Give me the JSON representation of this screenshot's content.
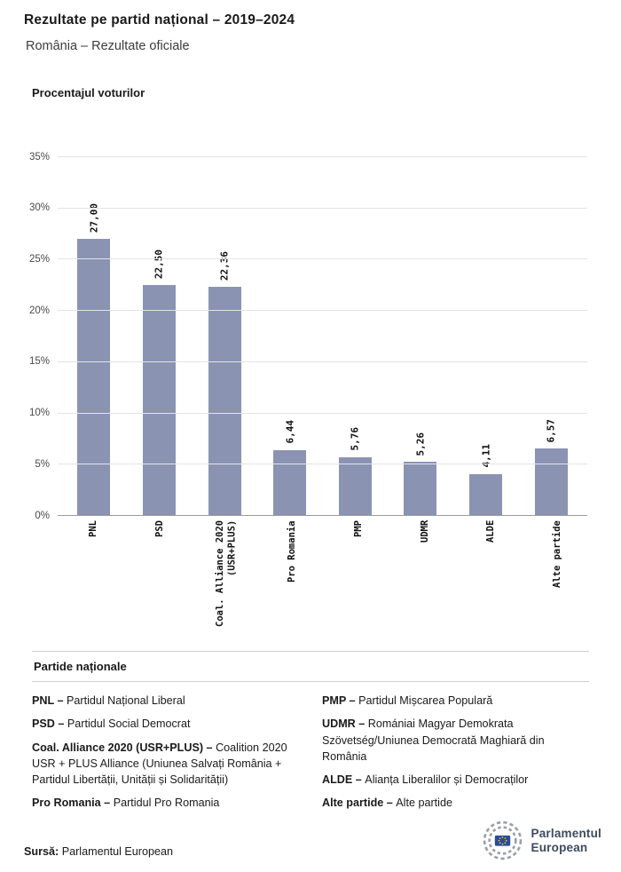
{
  "header": {
    "title": "Rezultate pe partid național – 2019–2024",
    "subtitle": "România – Rezultate oficiale"
  },
  "chart_data": {
    "type": "bar",
    "title": "Procentajul voturilor",
    "categories": [
      "PNL",
      "PSD",
      "Coal. Alliance 2020\n(USR+PLUS)",
      "Pro Romania",
      "PMP",
      "UDMR",
      "ALDE",
      "Alte partide"
    ],
    "values": [
      27.0,
      22.5,
      22.36,
      6.44,
      5.76,
      5.26,
      4.11,
      6.57
    ],
    "value_labels": [
      "27,00",
      "22,50",
      "22,36",
      "6,44",
      "5,76",
      "5,26",
      "4,11",
      "6,57"
    ],
    "xlabel": "",
    "ylabel": "Procentajul voturilor",
    "ylim": [
      0,
      35
    ],
    "yticks": [
      0,
      5,
      10,
      15,
      20,
      25,
      30,
      35
    ],
    "ytick_labels": [
      "0%",
      "5%",
      "10%",
      "15%",
      "20%",
      "25%",
      "30%",
      "35%"
    ],
    "grid": true,
    "legend_position": "none",
    "bar_color": "#8b93b2"
  },
  "legend": {
    "heading": "Partide naționale",
    "columns": [
      [
        {
          "term": "PNL –",
          "desc": "Partidul Național Liberal"
        },
        {
          "term": "PSD –",
          "desc": "Partidul Social Democrat"
        },
        {
          "term": "Coal. Alliance 2020 (USR+PLUS) –",
          "desc": "Coalition 2020 USR + PLUS Alliance (Uniunea Salvați România + Partidul Libertății, Unității și Solidarității)"
        },
        {
          "term": "Pro Romania –",
          "desc": "Partidul Pro Romania"
        }
      ],
      [
        {
          "term": "PMP –",
          "desc": "Partidul Mișcarea Populară"
        },
        {
          "term": "UDMR –",
          "desc": "Romániai Magyar Demokrata Szövetség/Uniunea Democrată Maghiară din România"
        },
        {
          "term": "ALDE –",
          "desc": "Alianța Liberalilor și Democraților"
        },
        {
          "term": "Alte partide –",
          "desc": "Alte partide"
        }
      ]
    ]
  },
  "footer": {
    "source_label": "Sursă:",
    "source_text": "Parlamentul European",
    "logo_line1": "Parlamentul",
    "logo_line2": "European"
  }
}
